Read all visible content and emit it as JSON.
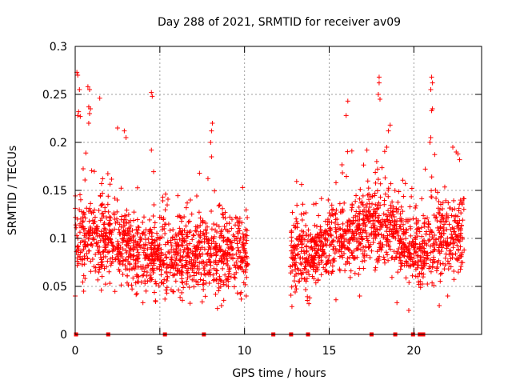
{
  "chart_data": {
    "type": "scatter",
    "title": "Day 288 of 2021, SRMTID for receiver av09",
    "xlabel": "GPS time / hours",
    "ylabel": "SRMTID / TECUs",
    "xlim": [
      0,
      24
    ],
    "ylim": [
      0,
      0.3
    ],
    "x_ticks": [
      0,
      5,
      10,
      15,
      20
    ],
    "x_tick_labels": [
      "0",
      "5",
      "10",
      "15",
      "20"
    ],
    "y_ticks": [
      0,
      0.05,
      0.1,
      0.15,
      0.2,
      0.25,
      0.3
    ],
    "y_tick_labels": [
      "0",
      "0.05",
      "0.1",
      "0.15",
      "0.2",
      "0.25",
      "0.3"
    ],
    "grid": true,
    "marker": "+",
    "color": "#ff0000",
    "bottom_markers_x": [
      0.05,
      1.95,
      5.3,
      7.6,
      11.7,
      12.75,
      13.75,
      17.5,
      18.9,
      19.95,
      20.35,
      20.55
    ],
    "series": [
      {
        "name": "SRMTID",
        "segments": [
          {
            "x_start": 0.0,
            "x_end": 10.2,
            "density": 1.0,
            "profile": [
              [
                0.0,
                0.1
              ],
              [
                1.0,
                0.1
              ],
              [
                2.5,
                0.095
              ],
              [
                4.0,
                0.085
              ],
              [
                5.5,
                0.08
              ],
              [
                7.0,
                0.085
              ],
              [
                8.5,
                0.08
              ],
              [
                10.2,
                0.085
              ]
            ],
            "spread": 0.035
          },
          {
            "x_start": 12.7,
            "x_end": 23.0,
            "density": 1.0,
            "profile": [
              [
                12.7,
                0.085
              ],
              [
                14.0,
                0.08
              ],
              [
                15.0,
                0.1
              ],
              [
                16.5,
                0.1
              ],
              [
                17.5,
                0.115
              ],
              [
                18.5,
                0.11
              ],
              [
                19.5,
                0.09
              ],
              [
                20.5,
                0.08
              ],
              [
                21.5,
                0.1
              ],
              [
                23.0,
                0.1
              ]
            ],
            "spread": 0.035
          }
        ],
        "highlights": [
          [
            0.1,
            0.273
          ],
          [
            0.15,
            0.27
          ],
          [
            0.25,
            0.255
          ],
          [
            0.2,
            0.232
          ],
          [
            0.15,
            0.228
          ],
          [
            0.3,
            0.227
          ],
          [
            0.75,
            0.258
          ],
          [
            0.85,
            0.255
          ],
          [
            0.8,
            0.237
          ],
          [
            0.9,
            0.235
          ],
          [
            0.85,
            0.23
          ],
          [
            0.8,
            0.22
          ],
          [
            1.45,
            0.246
          ],
          [
            4.5,
            0.252
          ],
          [
            4.55,
            0.248
          ],
          [
            8.1,
            0.22
          ],
          [
            8.05,
            0.212
          ],
          [
            8.0,
            0.2
          ],
          [
            8.05,
            0.185
          ],
          [
            16.1,
            0.243
          ],
          [
            16.0,
            0.228
          ],
          [
            17.95,
            0.268
          ],
          [
            17.95,
            0.262
          ],
          [
            17.9,
            0.25
          ],
          [
            18.0,
            0.245
          ],
          [
            21.05,
            0.268
          ],
          [
            21.1,
            0.262
          ],
          [
            21.0,
            0.255
          ],
          [
            21.1,
            0.235
          ],
          [
            21.05,
            0.233
          ],
          [
            21.0,
            0.205
          ],
          [
            20.95,
            0.2
          ],
          [
            18.6,
            0.218
          ],
          [
            18.5,
            0.212
          ],
          [
            18.4,
            0.195
          ],
          [
            22.3,
            0.195
          ],
          [
            22.5,
            0.19
          ],
          [
            22.6,
            0.188
          ],
          [
            22.7,
            0.182
          ],
          [
            2.5,
            0.215
          ],
          [
            2.9,
            0.212
          ],
          [
            3.0,
            0.205
          ],
          [
            4.5,
            0.192
          ],
          [
            4.0,
            0.033
          ],
          [
            7.5,
            0.034
          ],
          [
            8.4,
            0.027
          ],
          [
            19.0,
            0.033
          ],
          [
            19.7,
            0.025
          ],
          [
            21.5,
            0.03
          ],
          [
            22.0,
            0.04
          ],
          [
            13.8,
            0.032
          ],
          [
            13.85,
            0.038
          ],
          [
            12.8,
            0.029
          ],
          [
            15.4,
            0.036
          ],
          [
            16.8,
            0.04
          ],
          [
            10.1,
            0.04
          ],
          [
            0.0,
            0.04
          ],
          [
            0.5,
            0.045
          ]
        ]
      }
    ]
  }
}
